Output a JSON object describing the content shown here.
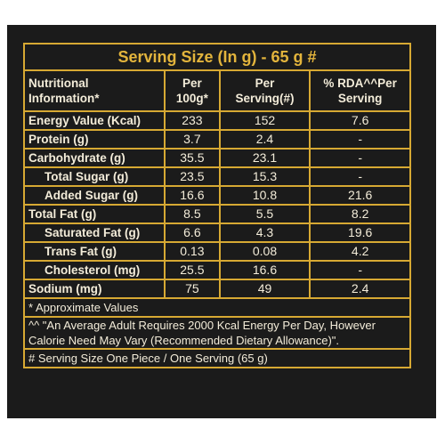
{
  "title": "Serving Size (In g) - 65 g #",
  "headers": [
    "Nutritional\nInformation*",
    "Per\n100g*",
    "Per\nServing(#)",
    "% RDA^^Per\nServing"
  ],
  "rows": [
    [
      "Energy Value (Kcal)",
      "233",
      "152",
      "7.6"
    ],
    [
      "Protein (g)",
      "3.7",
      "2.4",
      "-"
    ],
    [
      "Carbohydrate (g)",
      "35.5",
      "23.1",
      "-"
    ],
    [
      "Total Sugar (g)",
      "23.5",
      "15.3",
      "-"
    ],
    [
      "Added Sugar (g)",
      "16.6",
      "10.8",
      "21.6"
    ],
    [
      "Total Fat (g)",
      "8.5",
      "5.5",
      "8.2"
    ],
    [
      "Saturated Fat (g)",
      "6.6",
      "4.3",
      "19.6"
    ],
    [
      "Trans Fat (g)",
      "0.13",
      "0.08",
      "4.2"
    ],
    [
      "Cholesterol (mg)",
      "25.5",
      "16.6",
      "-"
    ],
    [
      "Sodium (mg)",
      "75",
      "49",
      "2.4"
    ]
  ],
  "footnotes": [
    "* Approximate Values",
    "^^ \"An Average Adult Requires 2000 Kcal Energy Per Day, However Calorie Need May Vary (Recommended Dietary Allowance)\".",
    "# Serving Size One Piece / One Serving (65 g)"
  ]
}
